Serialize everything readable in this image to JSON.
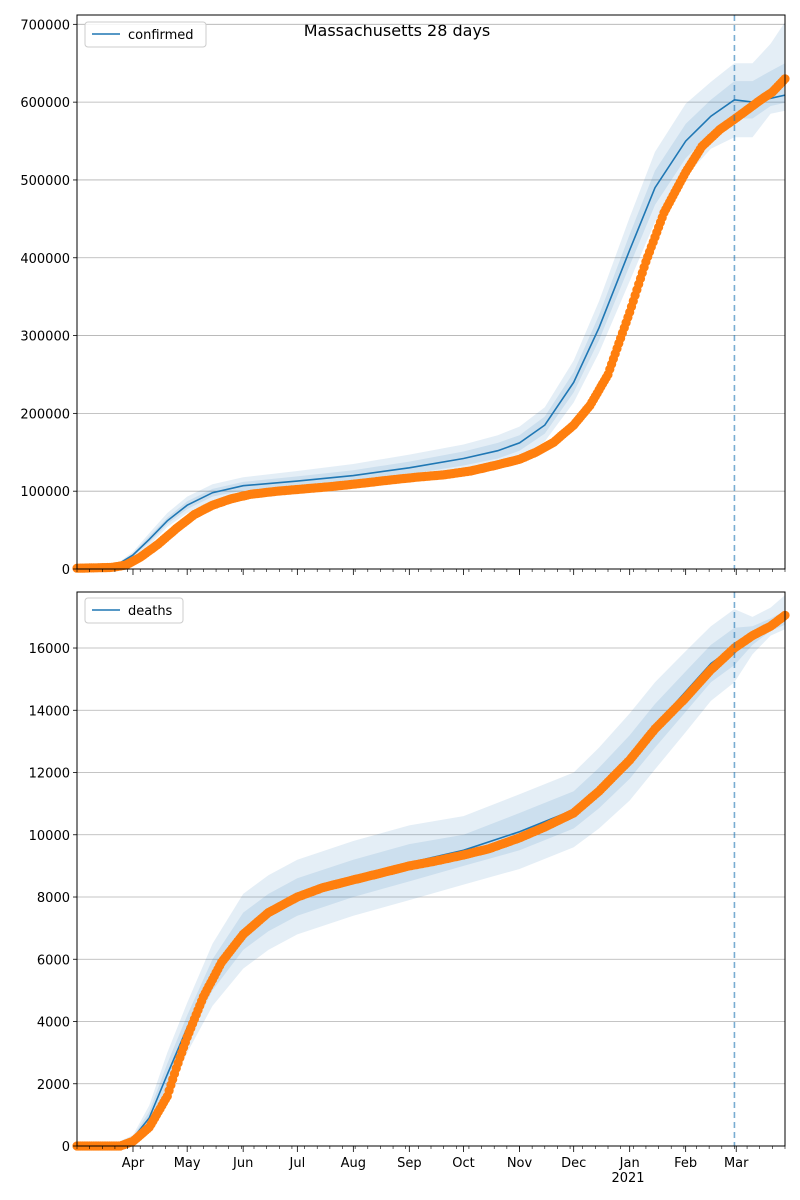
{
  "figure": {
    "title": "Massachusetts 28 days"
  },
  "colors": {
    "model": "#1f77b4",
    "observed": "#ff7f0e",
    "band": "#1f77b4",
    "grid": "#b0b0b0",
    "forecast_line": "#1f77b4"
  },
  "x_axis": {
    "tick_labels": [
      "Apr",
      "May",
      "Jun",
      "Jul",
      "Aug",
      "Sep",
      "Oct",
      "Nov",
      "Dec",
      "Jan",
      "Feb",
      "Mar"
    ],
    "tick_dates": [
      "2020-04-01",
      "2020-05-01",
      "2020-06-01",
      "2020-07-01",
      "2020-08-01",
      "2020-09-01",
      "2020-10-01",
      "2020-11-01",
      "2020-12-01",
      "2021-01-01",
      "2021-02-01",
      "2021-03-01"
    ],
    "year_label": "2021",
    "range": [
      "2020-03-01",
      "2021-03-28"
    ],
    "forecast_start": "2021-02-28"
  },
  "chart_data": [
    {
      "type": "line",
      "legend": "confirmed",
      "legend_position": "top-left",
      "grid": "horizontal",
      "ylim": [
        0,
        712000
      ],
      "yticks": [
        0,
        100000,
        200000,
        300000,
        400000,
        500000,
        600000,
        700000
      ],
      "ytick_labels": [
        "0",
        "100000",
        "200000",
        "300000",
        "400000",
        "500000",
        "600000",
        "700000"
      ],
      "model_x": [
        "2020-03-01",
        "2020-03-15",
        "2020-03-25",
        "2020-04-01",
        "2020-04-10",
        "2020-04-20",
        "2020-05-01",
        "2020-05-15",
        "2020-06-01",
        "2020-07-01",
        "2020-08-01",
        "2020-09-01",
        "2020-10-01",
        "2020-10-20",
        "2020-11-01",
        "2020-11-15",
        "2020-12-01",
        "2020-12-15",
        "2021-01-01",
        "2021-01-15",
        "2021-02-01",
        "2021-02-15",
        "2021-02-28",
        "2021-03-10",
        "2021-03-20",
        "2021-03-28"
      ],
      "model": [
        2000,
        3000,
        8000,
        18000,
        38000,
        62000,
        82000,
        98000,
        107000,
        113000,
        120000,
        130000,
        142000,
        152000,
        162000,
        185000,
        240000,
        310000,
        410000,
        490000,
        550000,
        582000,
        603000,
        600000,
        605000,
        609000
      ],
      "band_lower": [
        [
          1500,
          2500,
          6000,
          14000,
          30000,
          54000,
          72000,
          88000,
          96000,
          101000,
          107000,
          115000,
          125000,
          134000,
          143000,
          164000,
          214000,
          278000,
          370000,
          446000,
          505000,
          540000,
          555000,
          555000,
          585000,
          589000
        ],
        [
          1800,
          2800,
          7000,
          16000,
          34000,
          58000,
          77000,
          93000,
          101000,
          107000,
          113000,
          122000,
          133000,
          142000,
          152000,
          174000,
          227000,
          294000,
          390000,
          468000,
          528000,
          561000,
          579000,
          579000,
          595000,
          599000
        ]
      ],
      "band_upper": [
        [
          2200,
          3300,
          9000,
          20000,
          42000,
          66000,
          87000,
          103000,
          112000,
          119000,
          127000,
          138000,
          151000,
          162000,
          172000,
          196000,
          253000,
          326000,
          430000,
          512000,
          572000,
          603000,
          627000,
          627000,
          640000,
          650000
        ],
        [
          2500,
          3600,
          10000,
          22000,
          46000,
          72000,
          93000,
          109000,
          118000,
          126000,
          135000,
          147000,
          160000,
          172000,
          183000,
          208000,
          268000,
          344000,
          452000,
          536000,
          598000,
          626000,
          650000,
          650000,
          675000,
          703000
        ]
      ],
      "observed_x": [
        "2020-03-01",
        "2020-03-20",
        "2020-03-28",
        "2020-04-05",
        "2020-04-15",
        "2020-04-25",
        "2020-05-05",
        "2020-05-15",
        "2020-05-25",
        "2020-06-05",
        "2020-06-20",
        "2020-07-05",
        "2020-07-20",
        "2020-08-05",
        "2020-08-20",
        "2020-09-05",
        "2020-09-20",
        "2020-10-05",
        "2020-10-20",
        "2020-11-01",
        "2020-11-10",
        "2020-11-20",
        "2020-12-01",
        "2020-12-10",
        "2020-12-20",
        "2021-01-01",
        "2021-01-10",
        "2021-01-20",
        "2021-02-01",
        "2021-02-10",
        "2021-02-20",
        "2021-02-28",
        "2021-03-07",
        "2021-03-14",
        "2021-03-21",
        "2021-03-28"
      ],
      "observed": [
        1000,
        2000,
        5000,
        15000,
        32000,
        52000,
        70000,
        82000,
        90000,
        96000,
        100000,
        103000,
        106000,
        110000,
        114000,
        118000,
        121000,
        126000,
        134000,
        141000,
        150000,
        163000,
        185000,
        210000,
        250000,
        330000,
        395000,
        458000,
        510000,
        543000,
        565000,
        578000,
        590000,
        602000,
        613000,
        630000
      ]
    },
    {
      "type": "line",
      "legend": "deaths",
      "legend_position": "top-left",
      "grid": "horizontal",
      "ylim": [
        0,
        17800
      ],
      "yticks": [
        0,
        2000,
        4000,
        6000,
        8000,
        10000,
        12000,
        14000,
        16000
      ],
      "ytick_labels": [
        "0",
        "2000",
        "4000",
        "6000",
        "8000",
        "10000",
        "12000",
        "14000",
        "16000"
      ],
      "model_x": [
        "2020-03-01",
        "2020-03-20",
        "2020-04-01",
        "2020-04-10",
        "2020-04-20",
        "2020-05-01",
        "2020-05-15",
        "2020-06-01",
        "2020-06-15",
        "2020-07-01",
        "2020-08-01",
        "2020-09-01",
        "2020-10-01",
        "2020-11-01",
        "2020-12-01",
        "2020-12-15",
        "2021-01-01",
        "2021-01-15",
        "2021-02-01",
        "2021-02-15",
        "2021-02-28",
        "2021-03-10",
        "2021-03-20",
        "2021-03-28"
      ],
      "model": [
        0,
        20,
        250,
        900,
        2300,
        3800,
        5500,
        6900,
        7500,
        8000,
        8600,
        9100,
        9500,
        10100,
        10800,
        11500,
        12500,
        13500,
        14600,
        15500,
        16050,
        16400,
        16700,
        16900
      ],
      "band_lower": [
        [
          0,
          10,
          150,
          500,
          1600,
          3000,
          4500,
          5700,
          6300,
          6800,
          7400,
          7900,
          8400,
          8900,
          9600,
          10200,
          11100,
          12100,
          13300,
          14300,
          14900,
          15800,
          16400,
          16600
        ],
        [
          0,
          15,
          200,
          700,
          1950,
          3400,
          5000,
          6300,
          6900,
          7400,
          8000,
          8500,
          9000,
          9500,
          10200,
          10850,
          11800,
          12800,
          13950,
          14900,
          15450,
          16100,
          16550,
          16750
        ]
      ],
      "band_upper": [
        [
          0,
          25,
          300,
          1100,
          2650,
          4200,
          6000,
          7500,
          8100,
          8600,
          9200,
          9700,
          10000,
          10700,
          11400,
          12150,
          13200,
          14200,
          15250,
          16100,
          16650,
          16700,
          16950,
          17200
        ],
        [
          0,
          30,
          350,
          1300,
          3000,
          4600,
          6500,
          8100,
          8700,
          9200,
          9800,
          10300,
          10600,
          11300,
          12000,
          12800,
          13900,
          14900,
          15900,
          16700,
          17250,
          17000,
          17300,
          17700
        ]
      ],
      "observed_x": [
        "2020-03-01",
        "2020-03-25",
        "2020-04-01",
        "2020-04-10",
        "2020-04-20",
        "2020-04-25",
        "2020-05-01",
        "2020-05-10",
        "2020-05-20",
        "2020-06-01",
        "2020-06-15",
        "2020-07-01",
        "2020-07-15",
        "2020-08-01",
        "2020-08-15",
        "2020-09-01",
        "2020-09-15",
        "2020-10-01",
        "2020-10-15",
        "2020-11-01",
        "2020-11-15",
        "2020-12-01",
        "2020-12-15",
        "2021-01-01",
        "2021-01-15",
        "2021-02-01",
        "2021-02-15",
        "2021-02-28",
        "2021-03-10",
        "2021-03-20",
        "2021-03-28"
      ],
      "observed": [
        0,
        0,
        150,
        600,
        1600,
        2500,
        3500,
        4800,
        5900,
        6800,
        7500,
        8000,
        8300,
        8550,
        8750,
        9000,
        9150,
        9350,
        9550,
        9900,
        10250,
        10700,
        11400,
        12400,
        13400,
        14400,
        15300,
        16000,
        16400,
        16700,
        17050
      ]
    }
  ]
}
